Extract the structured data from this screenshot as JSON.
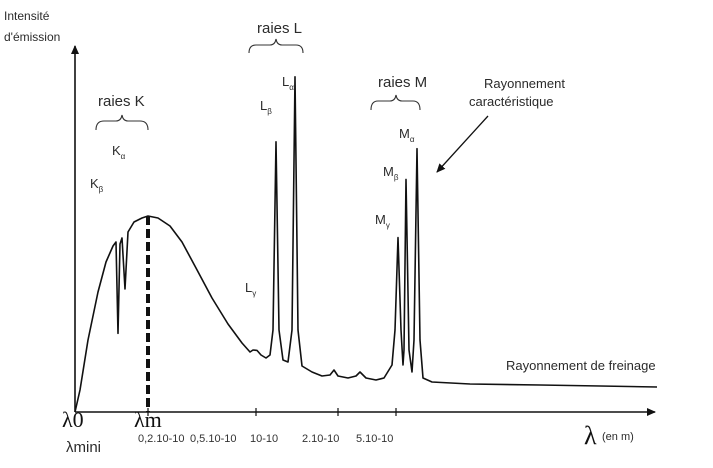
{
  "chart_data": {
    "type": "line",
    "ylabel_line1": "Intensité",
    "ylabel_line2": "d'émission",
    "xlabel_symbol": "λ",
    "xlabel_unit": "(en m)",
    "origin_label": "λ0",
    "lambda_m_label": "λm",
    "lambda_mini_label": "λmini",
    "tick_labels": [
      "0,2.10-10",
      "0,5.10-10",
      "10-10",
      "2.10-10",
      "5.10-10"
    ],
    "groups": [
      {
        "name": "raies K",
        "lines": [
          "Kβ",
          "Kα"
        ]
      },
      {
        "name": "raies L",
        "lines": [
          "Lγ",
          "Lβ",
          "Lα"
        ]
      },
      {
        "name": "raies M",
        "lines": [
          "Mγ",
          "Mβ",
          "Mα"
        ]
      }
    ],
    "annotations": {
      "characteristic_line1": "Rayonnement",
      "characteristic_line2": "caractéristique",
      "bremsstrahlung": "Rayonnement de freinage"
    },
    "peaks": [
      {
        "label": "Kβ",
        "base": "K",
        "sub": "β",
        "group": "raies K",
        "height": 0.23
      },
      {
        "label": "Kα",
        "base": "K",
        "sub": "α",
        "group": "raies K",
        "height": 0.36
      },
      {
        "label": "Lγ",
        "base": "L",
        "sub": "γ",
        "group": "raies L",
        "height": 0.18
      },
      {
        "label": "Lβ",
        "base": "L",
        "sub": "β",
        "group": "raies L",
        "height": 0.79
      },
      {
        "label": "Lα",
        "base": "L",
        "sub": "α",
        "group": "raies L",
        "height": 0.98
      },
      {
        "label": "Mγ",
        "base": "M",
        "sub": "γ",
        "group": "raies M",
        "height": 0.51
      },
      {
        "label": "Mβ",
        "base": "M",
        "sub": "β",
        "group": "raies M",
        "height": 0.68
      },
      {
        "label": "Mα",
        "base": "M",
        "sub": "α",
        "group": "raies M",
        "height": 0.77
      }
    ],
    "continuum_max": 0.57
  }
}
